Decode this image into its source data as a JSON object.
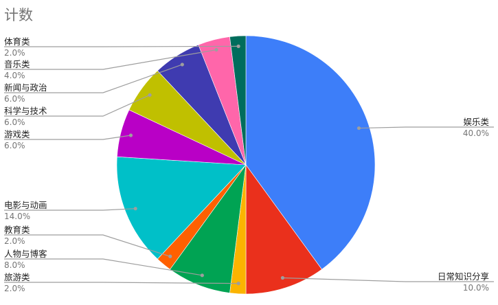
{
  "chart_data": {
    "type": "pie",
    "title": "计数",
    "start": "top",
    "direction": "clockwise",
    "legend": "labels with leader lines",
    "slices": [
      {
        "label": "娱乐类",
        "value": 40.0,
        "pct_text": "40.0%",
        "color": "#3d7ef9"
      },
      {
        "label": "日常知识分享",
        "value": 10.0,
        "pct_text": "10.0%",
        "color": "#ea301c"
      },
      {
        "label": "旅游类",
        "value": 2.0,
        "pct_text": "2.0%",
        "color": "#fbb400"
      },
      {
        "label": "人物与博客",
        "value": 8.0,
        "pct_text": "8.0%",
        "color": "#00a353"
      },
      {
        "label": "教育类",
        "value": 2.0,
        "pct_text": "2.0%",
        "color": "#ff6000"
      },
      {
        "label": "电影与动画",
        "value": 14.0,
        "pct_text": "14.0%",
        "color": "#00c0c8"
      },
      {
        "label": "游戏类",
        "value": 6.0,
        "pct_text": "6.0%",
        "color": "#b900c6"
      },
      {
        "label": "科学与技术",
        "value": 6.0,
        "pct_text": "6.0%",
        "color": "#c0c000"
      },
      {
        "label": "新闻与政治",
        "value": 6.0,
        "pct_text": "6.0%",
        "color": "#3f3bb0"
      },
      {
        "label": "音乐类",
        "value": 4.0,
        "pct_text": "4.0%",
        "color": "#ff66aa"
      },
      {
        "label": "体育类",
        "value": 2.0,
        "pct_text": "2.0%",
        "color": "#006d5c"
      }
    ]
  }
}
